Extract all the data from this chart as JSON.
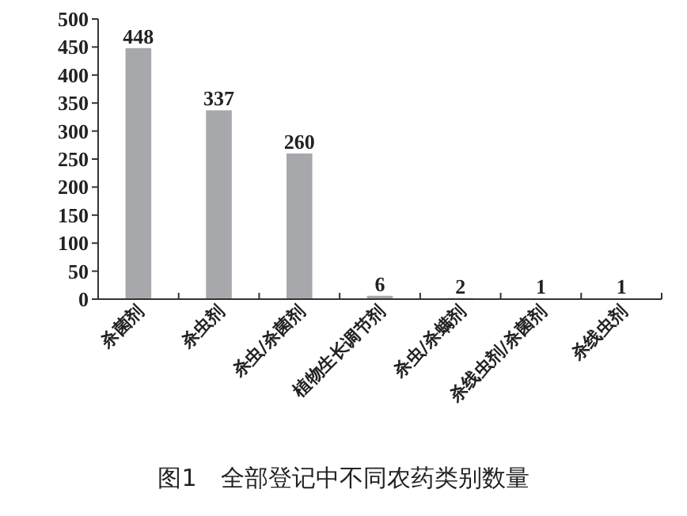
{
  "chart_data": {
    "type": "bar",
    "title": "图1　全部登记中不同农药类别数量",
    "categories": [
      "杀菌剂",
      "杀虫剂",
      "杀虫/杀菌剂",
      "植物生长调节剂",
      "杀虫/杀螨剂",
      "杀线虫剂/杀菌剂",
      "杀线虫剂"
    ],
    "values": [
      448,
      337,
      260,
      6,
      2,
      1,
      1
    ],
    "color": "#a7a8ab",
    "ylim": [
      0,
      500
    ],
    "yticks": [
      0,
      50,
      100,
      150,
      200,
      250,
      300,
      350,
      400,
      450,
      500
    ],
    "data_labels": true,
    "grid": false
  }
}
